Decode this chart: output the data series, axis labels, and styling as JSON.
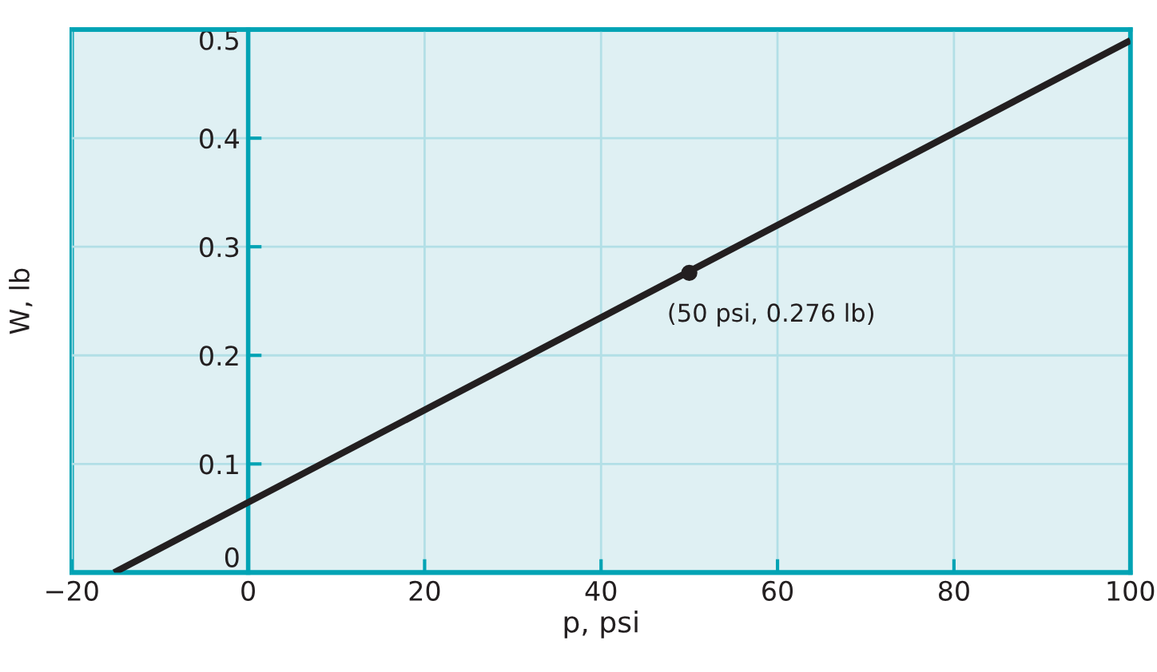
{
  "chart_data": {
    "type": "line",
    "xlabel": "p, psi",
    "ylabel": "W, lb",
    "series": [
      {
        "color": "#231f20",
        "x": [
          -15.2,
          100
        ],
        "values": [
          0,
          0.49
        ]
      },
      {
        "type": "scatter",
        "color": "#231f20",
        "x": [
          50
        ],
        "values": [
          0.276
        ],
        "marker": "circle"
      }
    ],
    "annotations": [
      {
        "text": "(50 psi, 0.276 lb)",
        "x": 50,
        "y": 0.276
      }
    ],
    "xlim": [
      -20,
      100
    ],
    "ylim": [
      0,
      0.5
    ],
    "xticks": [
      -20,
      0,
      20,
      40,
      60,
      80,
      100
    ],
    "yticks": [
      0,
      0.1,
      0.2,
      0.3,
      0.4,
      0.5
    ],
    "grid": true
  }
}
